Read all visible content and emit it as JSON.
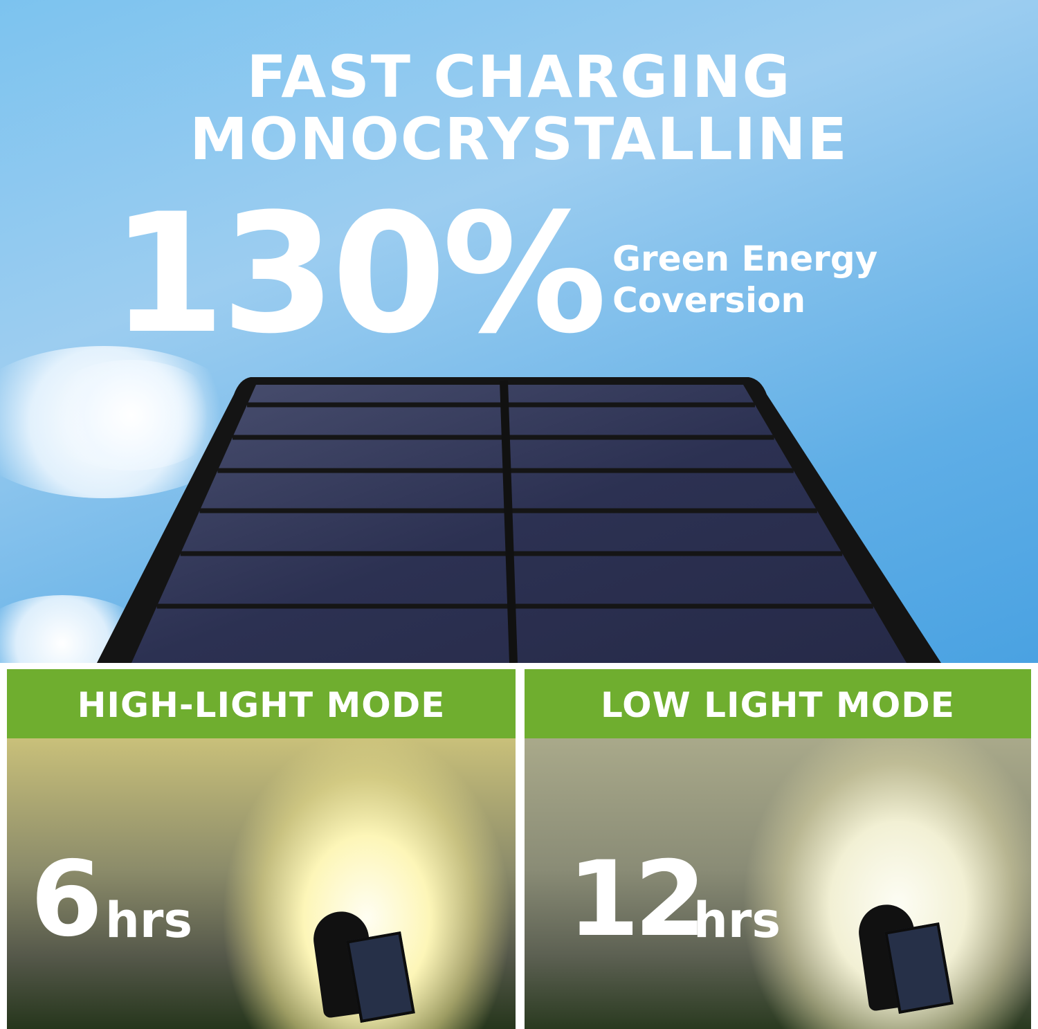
{
  "headline": {
    "line1": "FAST CHARGING",
    "line2": "MONOCRYSTALLINE"
  },
  "stat": {
    "value": "130%",
    "label_line1": "Green Energy",
    "label_line2": "Coversion"
  },
  "modes": [
    {
      "title": "HIGH-LIGHT MODE",
      "duration": "6",
      "unit": "hrs"
    },
    {
      "title": "LOW LIGHT MODE",
      "duration": "12",
      "unit": "hrs"
    }
  ],
  "colors": {
    "sky": "#5faee6",
    "mode_header": "#6fae2f",
    "panel_cells": "#2b3050"
  }
}
